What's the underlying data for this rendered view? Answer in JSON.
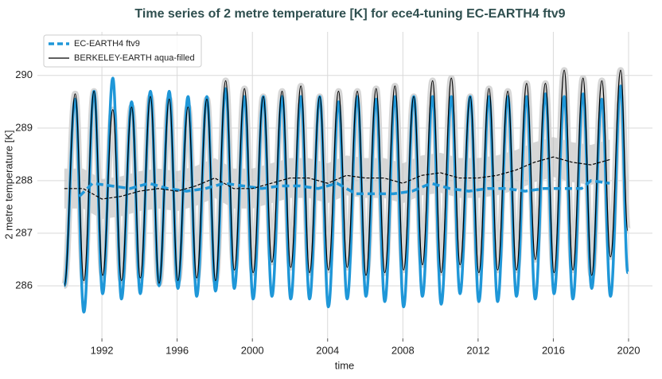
{
  "chart_data": {
    "type": "line",
    "title": "Time series of 2 metre temperature [K] for ece4-tuning EC-EARTH4 ftv9",
    "xlabel": "time",
    "ylabel": "2 metre temperature [K]",
    "xlim": [
      1988.57,
      2021.27
    ],
    "ylim": [
      285,
      290.83
    ],
    "xticks": [
      1992,
      1996,
      2000,
      2004,
      2008,
      2012,
      2016,
      2020
    ],
    "yticks": [
      286,
      287,
      288,
      289,
      290
    ],
    "grid": true,
    "legend": "upper left",
    "x": [
      1990.0,
      1990.58,
      1991.04,
      1991.58,
      1992.04,
      1992.58,
      1993.04,
      1993.58,
      1994.04,
      1994.58,
      1995.04,
      1995.58,
      1996.04,
      1996.58,
      1997.04,
      1997.58,
      1998.04,
      1998.58,
      1999.04,
      1999.58,
      2000.04,
      2000.58,
      2001.04,
      2001.58,
      2002.04,
      2002.58,
      2003.04,
      2003.58,
      2004.04,
      2004.58,
      2005.04,
      2005.58,
      2006.04,
      2006.58,
      2007.04,
      2007.58,
      2008.04,
      2008.58,
      2009.04,
      2009.58,
      2010.04,
      2010.58,
      2011.04,
      2011.58,
      2012.04,
      2012.58,
      2013.04,
      2013.58,
      2014.04,
      2014.58,
      2015.04,
      2015.58,
      2016.04,
      2016.58,
      2017.04,
      2017.58,
      2018.04,
      2018.58,
      2019.04,
      2019.58,
      2019.96
    ],
    "series": [
      {
        "name": "EC-EARTH4 ftv9",
        "color": "#1f97d8",
        "values": [
          286.0,
          289.55,
          285.5,
          289.7,
          285.85,
          289.95,
          285.75,
          289.5,
          285.85,
          289.7,
          286.0,
          289.7,
          285.95,
          289.6,
          285.8,
          289.6,
          285.9,
          289.75,
          285.95,
          289.6,
          285.75,
          289.6,
          285.8,
          289.6,
          285.75,
          289.6,
          285.75,
          289.6,
          285.6,
          289.5,
          285.75,
          289.6,
          285.8,
          289.55,
          285.7,
          289.6,
          285.6,
          289.6,
          285.8,
          289.6,
          285.65,
          289.6,
          285.85,
          289.6,
          285.7,
          289.6,
          285.7,
          289.6,
          285.8,
          289.6,
          285.75,
          289.65,
          285.85,
          289.6,
          285.75,
          289.65,
          285.95,
          289.55,
          285.8,
          289.8,
          286.25
        ],
        "mean_x": [
          1990.8,
          1991.5,
          1992.5,
          1993.5,
          1994.5,
          1995.5,
          1996.5,
          1997.5,
          1998.5,
          1999.5,
          2000.5,
          2001.5,
          2002.5,
          2003.5,
          2004.5,
          2005.5,
          2006.5,
          2007.5,
          2008.5,
          2009.5,
          2010.5,
          2011.5,
          2012.5,
          2013.5,
          2014.5,
          2015.5,
          2016.5,
          2017.5,
          2018.0,
          2019.0
        ],
        "mean": [
          287.7,
          287.95,
          287.9,
          287.85,
          287.95,
          287.85,
          287.8,
          287.85,
          287.95,
          287.9,
          287.85,
          287.9,
          287.9,
          287.85,
          287.95,
          287.75,
          287.75,
          287.75,
          287.8,
          287.95,
          287.85,
          287.8,
          287.85,
          287.85,
          287.8,
          287.85,
          287.85,
          287.85,
          288.0,
          287.95
        ]
      },
      {
        "name": "BERKELEY-EARTH aqua-filled",
        "color": "#000000",
        "values": [
          286.0,
          289.65,
          286.1,
          289.7,
          286.2,
          289.35,
          286.1,
          289.4,
          286.15,
          289.6,
          286.05,
          289.55,
          286.1,
          289.4,
          286.15,
          289.55,
          286.1,
          289.9,
          286.3,
          289.75,
          286.25,
          289.6,
          286.45,
          289.7,
          286.35,
          289.8,
          286.25,
          289.6,
          286.3,
          289.7,
          286.35,
          289.7,
          286.2,
          289.75,
          286.25,
          289.8,
          286.3,
          289.6,
          286.4,
          289.9,
          286.25,
          289.95,
          286.4,
          289.6,
          286.25,
          289.75,
          286.3,
          289.7,
          286.3,
          289.85,
          286.5,
          289.85,
          286.25,
          290.1,
          286.3,
          289.95,
          286.2,
          289.9,
          286.55,
          290.1,
          287.05
        ],
        "mean_x": [
          1990.0,
          1991.0,
          1992.0,
          1993.0,
          1994.0,
          1995.0,
          1996.0,
          1997.0,
          1998.0,
          1999.0,
          2000.0,
          2001.0,
          2002.0,
          2003.0,
          2004.0,
          2005.0,
          2006.0,
          2007.0,
          2008.0,
          2009.0,
          2010.0,
          2011.0,
          2012.0,
          2013.0,
          2014.0,
          2015.0,
          2016.0,
          2017.0,
          2018.0,
          2019.0
        ],
        "mean": [
          287.85,
          287.85,
          287.65,
          287.7,
          287.8,
          287.85,
          287.8,
          287.9,
          288.05,
          287.85,
          287.85,
          287.95,
          288.05,
          288.05,
          287.95,
          288.1,
          288.05,
          288.05,
          287.95,
          288.1,
          288.15,
          288.05,
          288.05,
          288.1,
          288.2,
          288.35,
          288.45,
          288.35,
          288.3,
          288.4
        ],
        "band": 0.38
      }
    ]
  }
}
